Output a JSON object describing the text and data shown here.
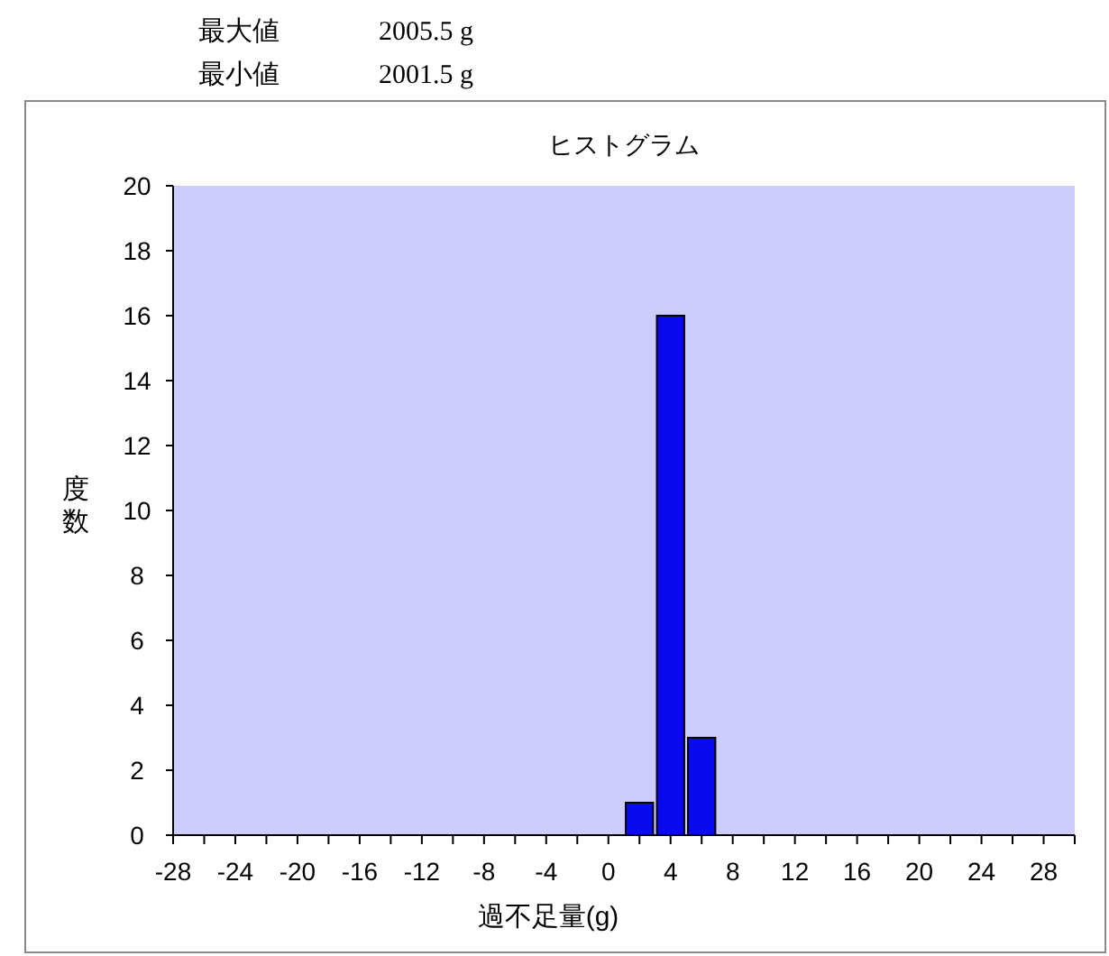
{
  "chart_data": {
    "type": "bar",
    "title": "ヒストグラム",
    "xlabel": "過不足量(g)",
    "ylabel": "度数",
    "annotations": [
      "最大値",
      "2005.5 g",
      "最小値",
      "2001.5 g"
    ],
    "categories": [
      "-28",
      null,
      "-24",
      null,
      "-20",
      null,
      "-16",
      null,
      "-12",
      null,
      "-8",
      null,
      "-4",
      null,
      "0",
      null,
      "4",
      null,
      "8",
      null,
      "12",
      null,
      "16",
      null,
      "20",
      null,
      "24",
      null,
      "28",
      null
    ],
    "values": [
      0,
      0,
      0,
      0,
      0,
      0,
      0,
      0,
      0,
      0,
      0,
      0,
      0,
      0,
      0,
      1,
      16,
      3,
      0,
      0,
      0,
      0,
      0,
      0,
      0,
      0,
      0,
      0,
      0,
      0
    ],
    "color": "#0a0af0",
    "ylim": [
      0,
      20
    ],
    "yticks": [
      0,
      2,
      4,
      6,
      8,
      10,
      12,
      14,
      16,
      18,
      20
    ]
  }
}
